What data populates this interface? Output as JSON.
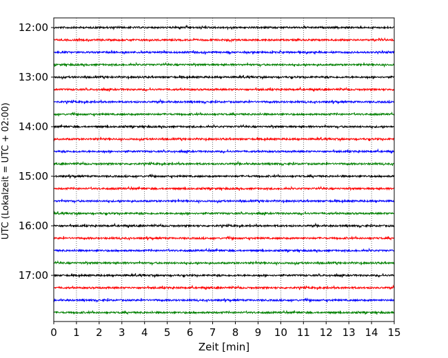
{
  "chart_data": {
    "type": "line",
    "title": "",
    "xlabel": "Zeit  [min]",
    "ylabel": "UTC (Lokalzeit = UTC + 02:00)",
    "xlim": [
      0,
      15
    ],
    "x_ticks": [
      "0",
      "1",
      "2",
      "3",
      "4",
      "5",
      "6",
      "7",
      "8",
      "9",
      "10",
      "11",
      "12",
      "13",
      "14",
      "15"
    ],
    "y_tick_labels": [
      "12:00",
      "13:00",
      "14:00",
      "15:00",
      "16:00",
      "17:00"
    ],
    "trace_start_times": [
      "12:00",
      "12:15",
      "12:30",
      "12:45",
      "13:00",
      "13:15",
      "13:30",
      "13:45",
      "14:00",
      "14:15",
      "14:30",
      "14:45",
      "15:00",
      "15:15",
      "15:30",
      "15:45",
      "16:00",
      "16:15",
      "16:30",
      "16:45",
      "17:00",
      "17:15",
      "17:30",
      "17:45"
    ],
    "trace_minutes_each": 15,
    "trace_colors": [
      "#000000",
      "#ff0000",
      "#0000ff",
      "#008000"
    ],
    "grid": "vertical dotted lines at each minute",
    "legend": "none"
  }
}
